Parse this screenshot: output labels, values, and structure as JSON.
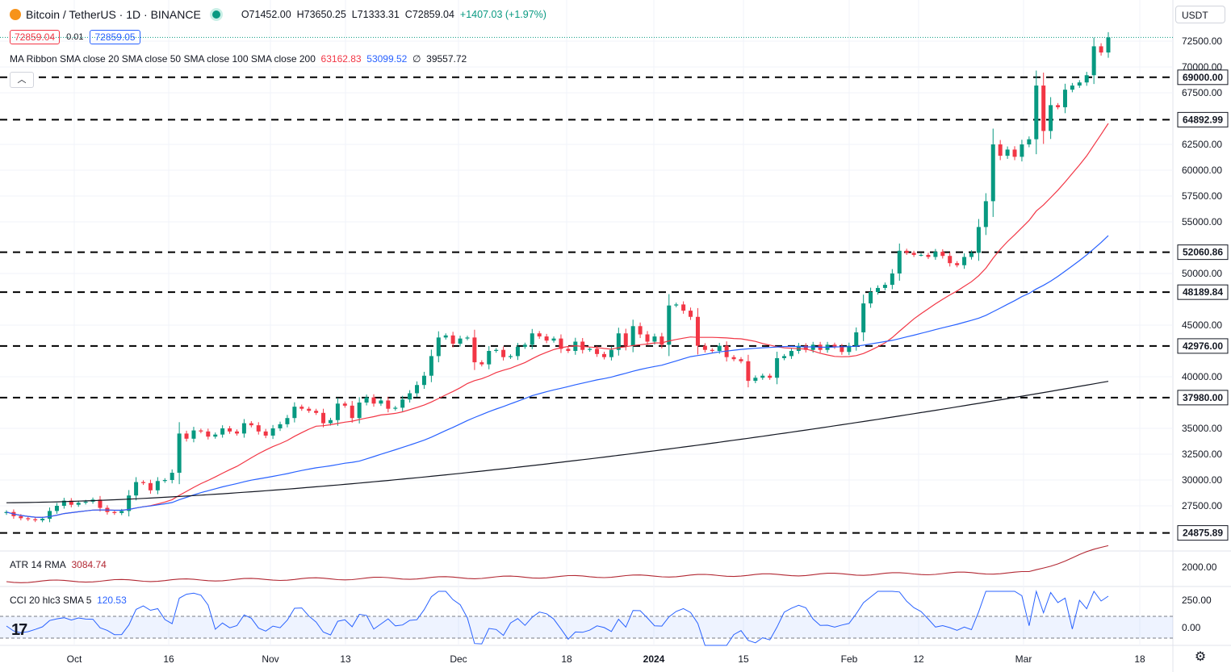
{
  "header": {
    "symbol_title": "Bitcoin / TetherUS · 1D · BINANCE",
    "open": "O71452.00",
    "high": "H73650.25",
    "low": "L71333.31",
    "close": "C72859.04",
    "change": "+1407.03 (+1.97%)"
  },
  "quote": {
    "sell": "72859.04",
    "spread": "0.01",
    "buy": "72859.05"
  },
  "ma_ribbon": {
    "label": "MA Ribbon SMA close 20 SMA close 50 SMA close 100 SMA close 200",
    "v20": "63162.83",
    "v50": "53099.52",
    "v100": "∅",
    "v200": "39557.72"
  },
  "atr": {
    "label": "ATR 14 RMA",
    "value": "3084.74"
  },
  "cci": {
    "label": "CCI 20 hlc3 SMA 5",
    "value": "120.53"
  },
  "currency_button": "USDT",
  "colors": {
    "up": "#089981",
    "down": "#f23645",
    "sma20": "#f23645",
    "sma50": "#2962ff",
    "sma200": "#131722",
    "atr": "#b22833",
    "cci": "#2962ff"
  },
  "chart_data": {
    "type": "candlestick",
    "price_axis_ticks": [
      "72500.00",
      "70000.00",
      "67500.00",
      "62500.00",
      "60000.00",
      "57500.00",
      "55000.00",
      "50000.00",
      "45000.00",
      "40000.00",
      "35000.00",
      "32500.00",
      "30000.00",
      "27500.00",
      "2000.00",
      "250.00",
      "0.00"
    ],
    "x_axis_labels": [
      "Oct",
      "16",
      "Nov",
      "13",
      "Dec",
      "18",
      "2024",
      "15",
      "Feb",
      "12",
      "Mar",
      "18"
    ],
    "horizontal_levels": [
      "69000.00",
      "64892.99",
      "52060.86",
      "48189.84",
      "42976.00",
      "37980.00",
      "24875.89"
    ],
    "series": [
      {
        "name": "SMA close 20",
        "last": 63162.83
      },
      {
        "name": "SMA close 50",
        "last": 53099.52
      },
      {
        "name": "SMA close 200",
        "last": 39557.72
      }
    ],
    "candles_close": [
      26900,
      26500,
      26300,
      26200,
      26100,
      26250,
      27000,
      27500,
      28000,
      27600,
      27800,
      27900,
      28100,
      27300,
      26900,
      26800,
      27000,
      28500,
      29800,
      29700,
      29000,
      29900,
      30000,
      30700,
      34500,
      34000,
      34800,
      34700,
      34200,
      34400,
      35000,
      34700,
      34500,
      35500,
      35300,
      34700,
      34300,
      35000,
      35400,
      36000,
      37100,
      36900,
      36700,
      36500,
      35500,
      35800,
      37400,
      37200,
      36000,
      37500,
      38000,
      37400,
      37700,
      36900,
      37000,
      37800,
      38400,
      39200,
      40100,
      42000,
      43800,
      44000,
      43200,
      43700,
      43800,
      41400,
      41200,
      42500,
      42600,
      41900,
      42000,
      42900,
      43100,
      44200,
      43900,
      43500,
      43700,
      42700,
      42500,
      43400,
      42600,
      42700,
      42200,
      41900,
      42600,
      44200,
      43000,
      44900,
      44100,
      43400,
      43900,
      43100,
      46900,
      47000,
      46400,
      45800,
      43000,
      42600,
      42500,
      43000,
      41900,
      41700,
      41500,
      39600,
      39900,
      40100,
      39900,
      41800,
      42000,
      42500,
      43000,
      42600,
      43100,
      42600,
      43100,
      42900,
      42400,
      43000,
      44300,
      47100,
      48200,
      48600,
      48900,
      50000,
      52200,
      52000,
      51800,
      51800,
      51600,
      52100,
      51700,
      51000,
      50800,
      51600,
      52000,
      54500,
      57000,
      62500,
      61400,
      62000,
      61300,
      62500,
      63000,
      68200,
      63800,
      66300,
      66100,
      67800,
      68200,
      68500,
      69200,
      72000,
      71400,
      72859
    ]
  }
}
